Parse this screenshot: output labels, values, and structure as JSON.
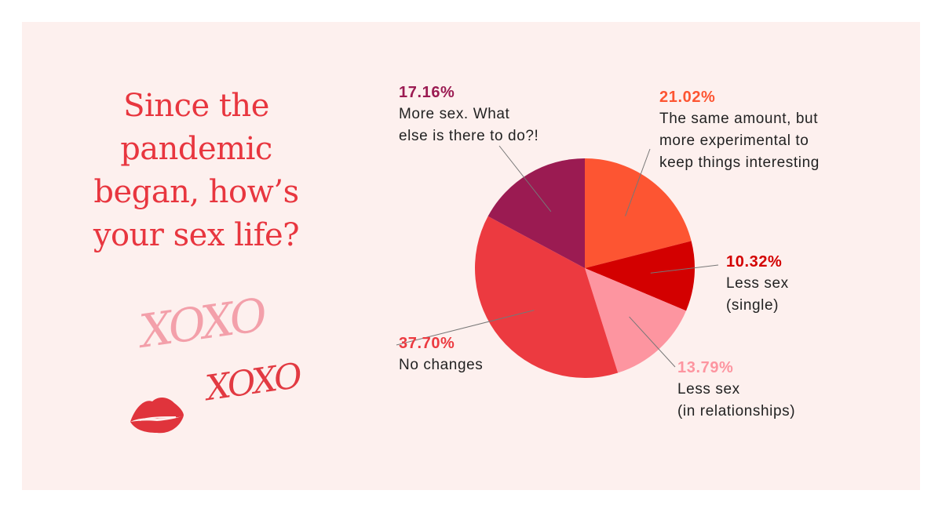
{
  "title_lines": [
    "Since the",
    "pandemic",
    "began, how’s",
    "your sex life?"
  ],
  "decorations": {
    "xoxo_large": "XOXO",
    "xoxo_small": "XOXO",
    "lips_icon": "lips-kiss-icon"
  },
  "chart_data": {
    "type": "pie",
    "start_angle": "top",
    "direction": "clockwise",
    "slices": [
      {
        "label": "The same amount, but\nmore experimental to\nkeep things interesting",
        "percent_label": "21.02%",
        "value": 21.02,
        "color": "#fd5532"
      },
      {
        "label": "Less sex\n(single)",
        "percent_label": "10.32%",
        "value": 10.32,
        "color": "#d30000"
      },
      {
        "label": "Less sex\n(in relationships)",
        "percent_label": "13.79%",
        "value": 13.79,
        "color": "#fd95a0"
      },
      {
        "label": "No changes",
        "percent_label": "37.70%",
        "value": 37.7,
        "color": "#ec3a40"
      },
      {
        "label": "More sex. What\nelse is there to do?!",
        "percent_label": "17.16%",
        "value": 17.16,
        "color": "#9b1b52"
      }
    ]
  },
  "colors": {
    "background": "#fdf0ee",
    "title": "#e8363f",
    "text": "#222222"
  }
}
